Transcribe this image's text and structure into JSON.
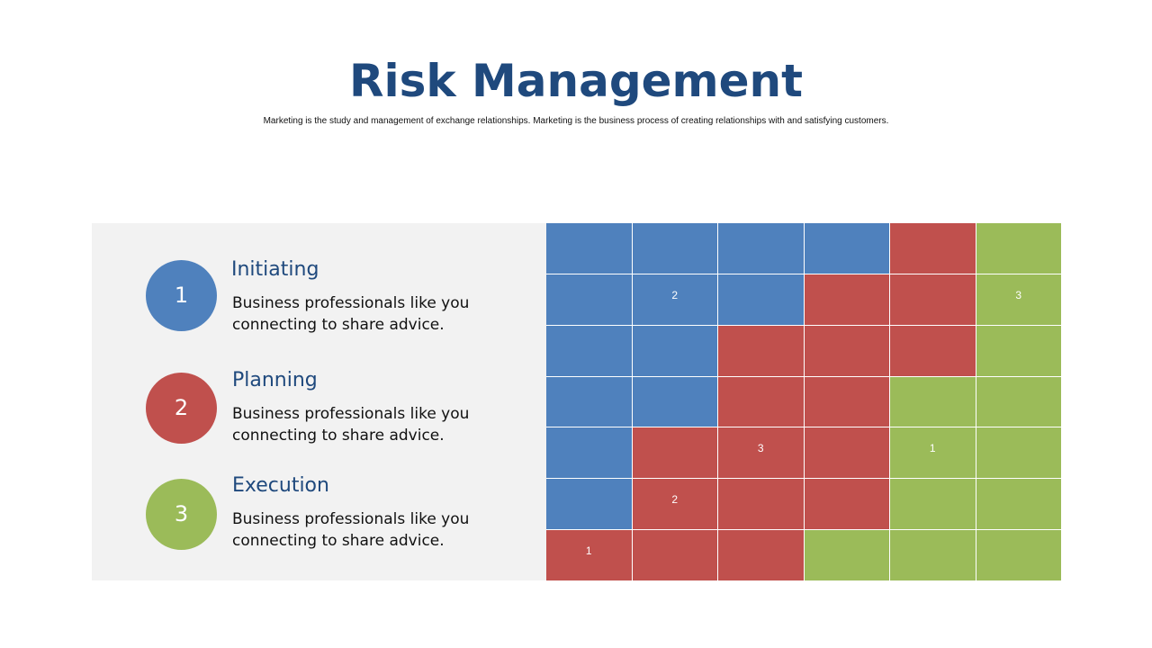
{
  "slide": {
    "title": "Risk Management",
    "subtitle": "Marketing is the study and management of exchange relationships. Marketing is the business process of creating relationships with and satisfying customers."
  },
  "steps": [
    {
      "number": "1",
      "title": "Initiating",
      "description": "Business professionals like you connecting to share advice.",
      "color": "#4f81bd"
    },
    {
      "number": "2",
      "title": "Planning",
      "description": "Business professionals like you connecting to share advice.",
      "color": "#c0504d"
    },
    {
      "number": "3",
      "title": "Execution",
      "description": "Business professionals like you connecting to share advice.",
      "color": "#9bbb59"
    }
  ],
  "palette": {
    "B": "#4f81bd",
    "R": "#c0504d",
    "G": "#9bbb59"
  },
  "matrix": {
    "rows": [
      [
        "B",
        "B",
        "B",
        "B",
        "R",
        "G"
      ],
      [
        "B",
        "B",
        "B",
        "R",
        "R",
        "G"
      ],
      [
        "B",
        "B",
        "R",
        "R",
        "R",
        "G"
      ],
      [
        "B",
        "B",
        "R",
        "R",
        "G",
        "G"
      ],
      [
        "B",
        "R",
        "R",
        "R",
        "G",
        "G"
      ],
      [
        "B",
        "R",
        "R",
        "R",
        "G",
        "G"
      ],
      [
        "R",
        "R",
        "R",
        "G",
        "G",
        "G"
      ]
    ],
    "labels": [
      [
        "",
        "",
        "",
        "",
        "",
        ""
      ],
      [
        "",
        "2",
        "",
        "",
        "",
        "3"
      ],
      [
        "",
        "",
        "",
        "",
        "",
        ""
      ],
      [
        "",
        "",
        "",
        "",
        "",
        ""
      ],
      [
        "",
        "",
        "3",
        "",
        "1",
        ""
      ],
      [
        "",
        "2",
        "",
        "",
        "",
        ""
      ],
      [
        "1",
        "",
        "",
        "",
        "",
        ""
      ]
    ]
  }
}
